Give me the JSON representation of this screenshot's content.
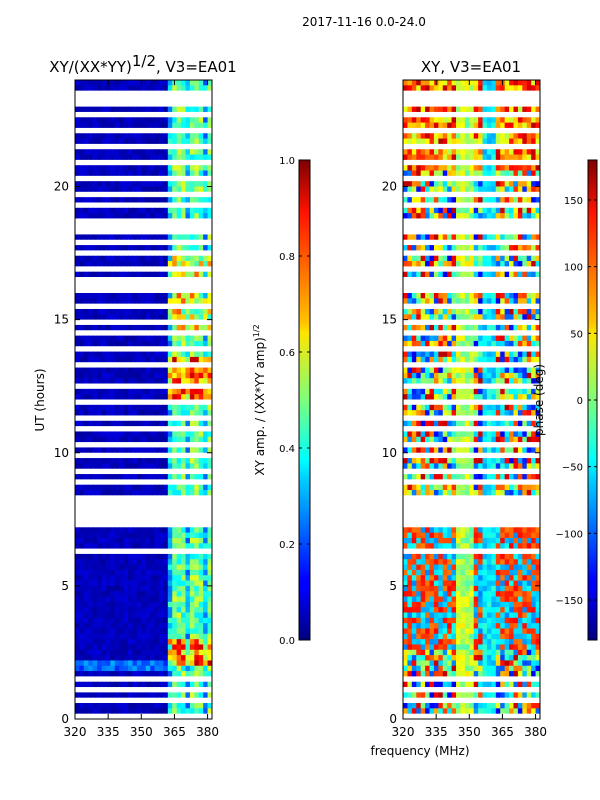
{
  "chart_data": {
    "type": "heatmap",
    "figure_title": "2017-11-16 0.0-24.0",
    "shared_xlabel": "frequency (MHz)",
    "panels": [
      {
        "id": "amp",
        "title_main": "XY/(XX*YY)",
        "title_exponent": "1/2",
        "title_suffix": ", V3=EA01",
        "ylabel": "UT (hours)",
        "xlim": [
          320,
          382
        ],
        "ylim": [
          0,
          24
        ],
        "xticks": [
          "320",
          "335",
          "350",
          "365",
          "380"
        ],
        "yticks": [
          "0",
          "5",
          "10",
          "15",
          "20"
        ],
        "colorbar": {
          "label_main": "XY amp. / (XX*YY amp)",
          "label_exponent": "1/2",
          "range": [
            0.0,
            1.0
          ],
          "ticks": [
            "0.0",
            "0.2",
            "0.4",
            "0.6",
            "0.8",
            "1.0"
          ],
          "colormap": "jet"
        }
      },
      {
        "id": "phase",
        "title": "XY, V3=EA01",
        "xlim": [
          320,
          382
        ],
        "ylim": [
          0,
          24
        ],
        "xticks": [
          "320",
          "335",
          "350",
          "365",
          "380"
        ],
        "yticks": [
          "0",
          "5",
          "10",
          "15",
          "20"
        ],
        "colorbar": {
          "label": "phase (deg)",
          "range": [
            -180,
            180
          ],
          "ticks": [
            "−150",
            "−100",
            "−50",
            "0",
            "50",
            "100",
            "150"
          ],
          "colormap": "jet"
        }
      }
    ],
    "blank_ut_bands": [
      [
        0.05,
        0.15
      ],
      [
        0.65,
        0.75
      ],
      [
        1.05,
        1.2
      ],
      [
        1.5,
        1.6
      ],
      [
        1.95,
        2.05
      ],
      [
        3.2,
        3.3
      ],
      [
        3.55,
        3.65
      ],
      [
        4.2,
        4.3
      ],
      [
        4.75,
        4.85
      ],
      [
        5.35,
        5.45
      ],
      [
        5.9,
        6.0
      ],
      [
        6.3,
        6.4
      ],
      [
        6.75,
        6.85
      ],
      [
        7.3,
        7.4
      ],
      [
        7.5,
        8.1
      ],
      [
        8.3,
        8.4
      ],
      [
        8.8,
        8.95
      ],
      [
        9.3,
        9.4
      ],
      [
        9.8,
        9.9
      ],
      [
        10.3,
        10.4
      ],
      [
        10.9,
        11.0
      ],
      [
        11.3,
        11.4
      ],
      [
        11.9,
        12.0
      ],
      [
        12.5,
        12.6
      ],
      [
        13.2,
        13.3
      ],
      [
        13.8,
        13.9
      ],
      [
        14.4,
        14.5
      ],
      [
        14.9,
        15.0
      ],
      [
        15.5,
        15.6
      ],
      [
        16.0,
        16.6
      ],
      [
        16.9,
        17.0
      ],
      [
        17.4,
        17.5
      ],
      [
        17.9,
        18.0
      ],
      [
        18.3,
        18.7
      ],
      [
        19.2,
        19.3
      ],
      [
        19.6,
        19.7
      ],
      [
        20.2,
        20.3
      ],
      [
        20.8,
        20.9
      ],
      [
        21.4,
        21.5
      ],
      [
        22.0,
        22.1
      ],
      [
        22.6,
        22.7
      ],
      [
        23.0,
        23.5
      ]
    ]
  }
}
